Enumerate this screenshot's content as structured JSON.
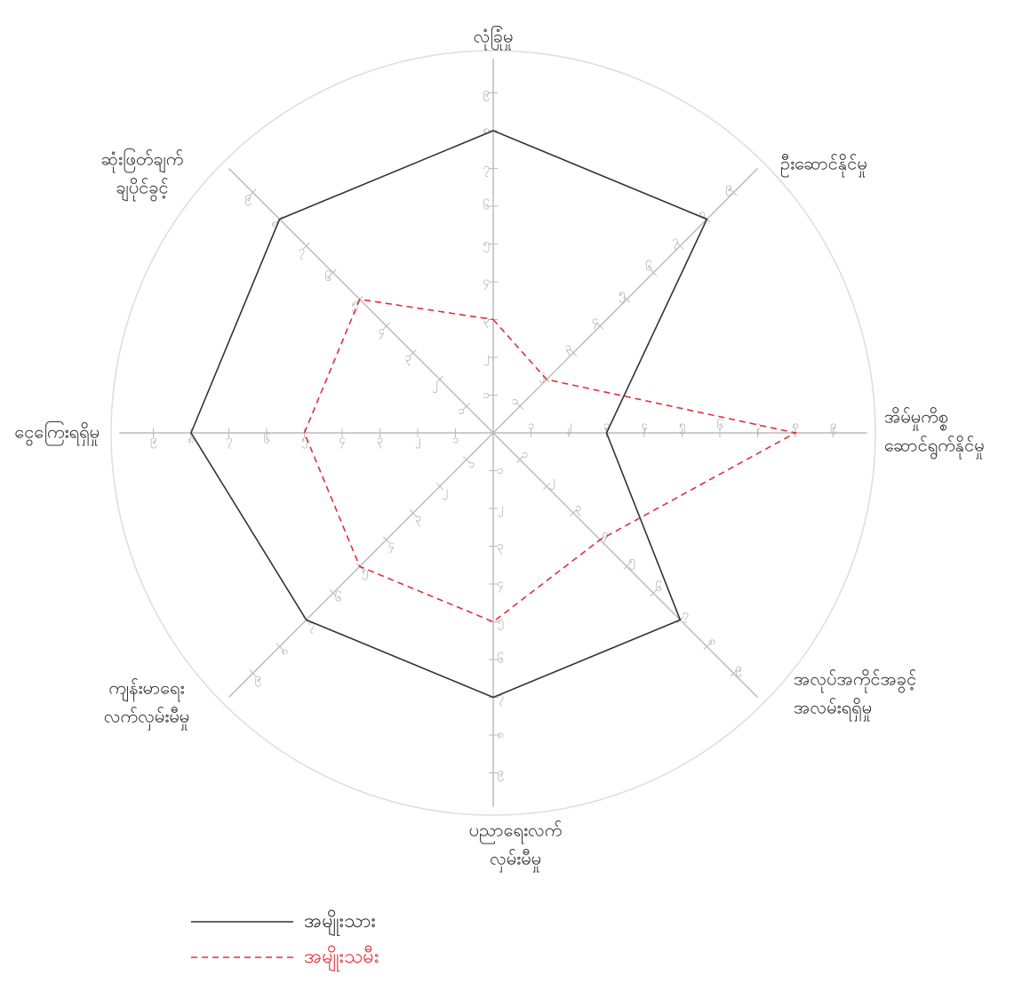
{
  "chart_data": {
    "type": "radar",
    "categories": [
      [
        "လုံခြုံမှု"
      ],
      [
        "ဦးဆောင်နိုင်မှု"
      ],
      [
        "အိမ်မှုကိစ္စ",
        "ဆောင်ရွက်နိုင်မှု"
      ],
      [
        "အလုပ်အကိုင်အခွင့်",
        "အလမ်းရရှိမှု"
      ],
      [
        "ပညာရေးလက်",
        "လှမ်းမီမှု"
      ],
      [
        "ကျန်းမာရေး",
        "လက်လှမ်းမီမှု"
      ],
      [
        "ငွေကြေးရရှိမှု"
      ],
      [
        "ဆုံးဖြတ်ချက်",
        "ချပိုင်ခွင့်"
      ]
    ],
    "series": [
      {
        "name": "အမျိုးသား",
        "color": "#333333",
        "dash": false,
        "values": [
          8,
          8,
          3,
          7,
          7,
          7,
          8,
          8
        ]
      },
      {
        "name": "အမျိုးသမီး",
        "color": "#e0303a",
        "dash": true,
        "values": [
          3,
          2,
          8,
          4,
          5,
          5,
          5,
          5
        ]
      }
    ],
    "rlim": [
      0,
      10
    ],
    "rticks": [
      {
        "value": 1,
        "label": "၁"
      },
      {
        "value": 2,
        "label": "၂"
      },
      {
        "value": 3,
        "label": "၃"
      },
      {
        "value": 4,
        "label": "၄"
      },
      {
        "value": 5,
        "label": "၅"
      },
      {
        "value": 6,
        "label": "၆"
      },
      {
        "value": 7,
        "label": "၇"
      },
      {
        "value": 8,
        "label": "၈"
      },
      {
        "value": 9,
        "label": "၉"
      }
    ]
  }
}
